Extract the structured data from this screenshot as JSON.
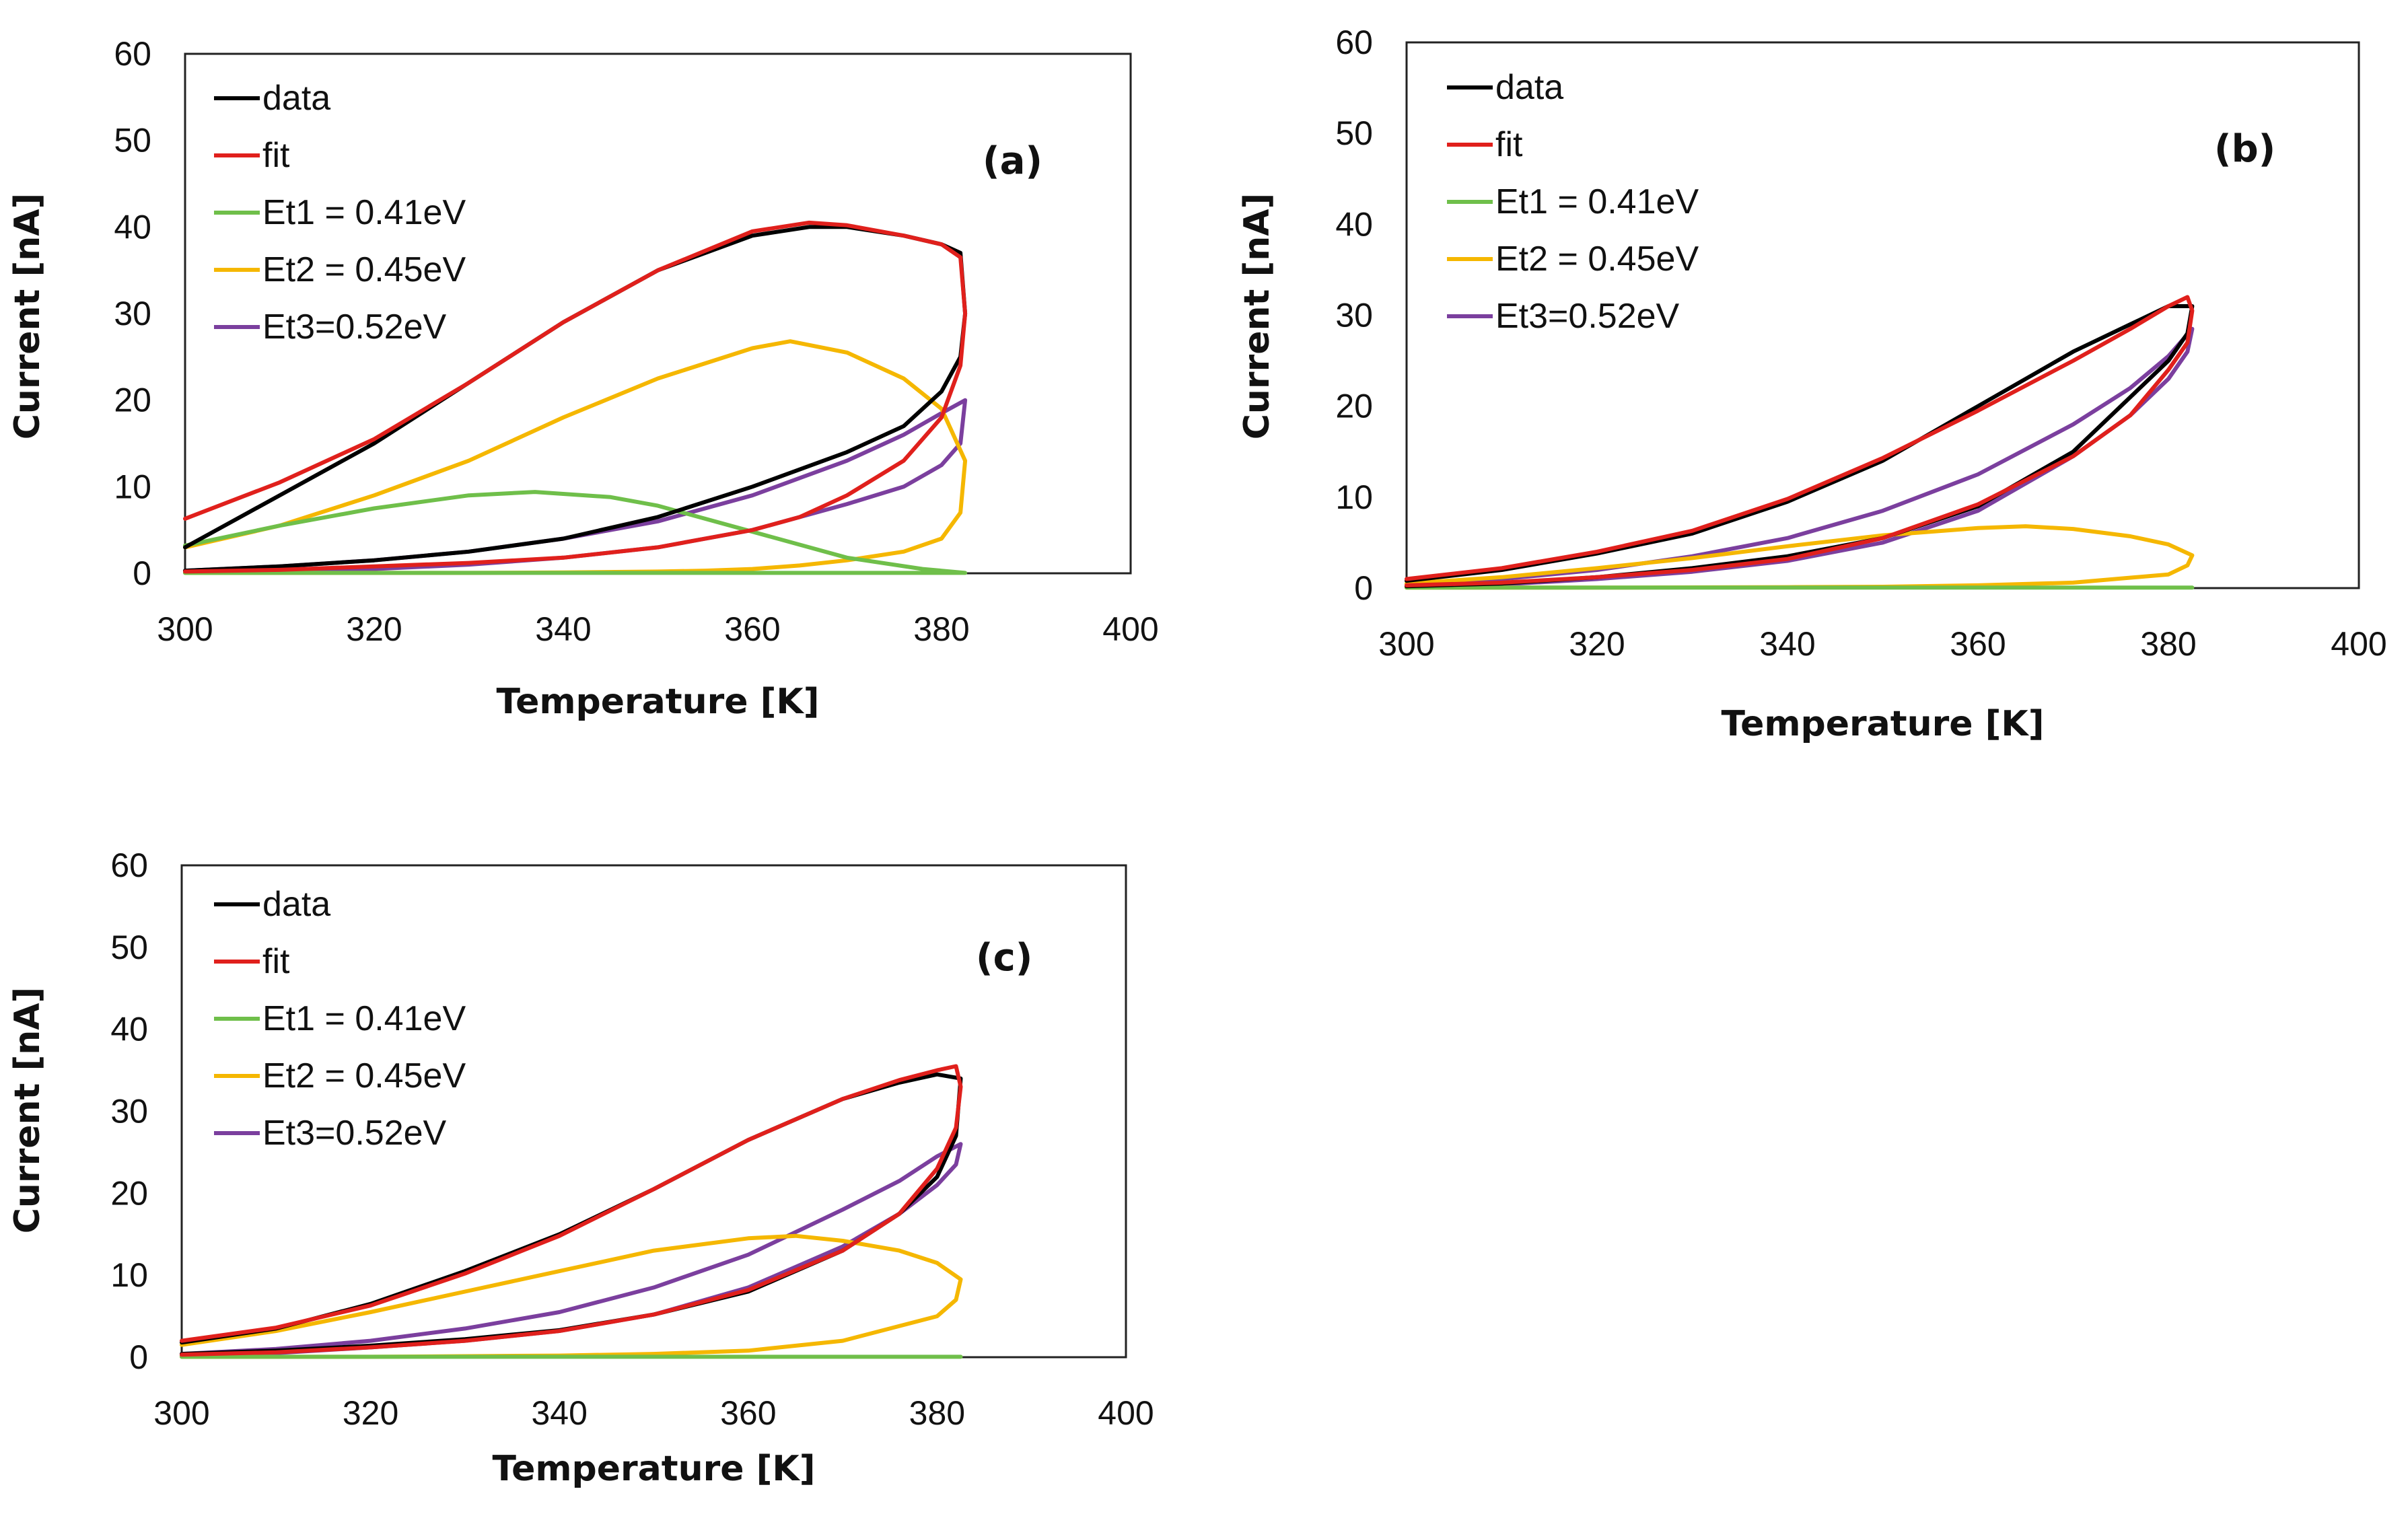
{
  "chart_data": [
    {
      "type": "line",
      "panel_label": "(a)",
      "xlabel": "Temperature [K]",
      "ylabel": "Current [nA]",
      "xlim": [
        300,
        400
      ],
      "ylim": [
        0,
        60
      ],
      "x_ticks": [
        300,
        320,
        340,
        360,
        380,
        400
      ],
      "y_ticks": [
        0,
        10,
        20,
        30,
        40,
        50,
        60
      ],
      "grid": false,
      "legend_position": "top-left",
      "series": [
        {
          "name": "data",
          "color": "#000000",
          "x": [
            300,
            310,
            320,
            330,
            340,
            350,
            360,
            366,
            370,
            376,
            380,
            382,
            382.5,
            382,
            380,
            376,
            370,
            360,
            350,
            340,
            330,
            320,
            310,
            300
          ],
          "y": [
            3,
            9,
            15,
            22,
            29,
            35,
            39,
            40,
            40,
            39,
            38,
            37,
            30,
            25,
            21,
            17,
            14,
            10,
            6.5,
            4,
            2.5,
            1.5,
            0.8,
            0.3
          ]
        },
        {
          "name": "fit",
          "color": "#e0201c",
          "x": [
            300,
            310,
            320,
            330,
            340,
            350,
            360,
            366,
            370,
            376,
            380,
            382,
            382.5,
            382,
            380,
            376,
            370,
            365,
            360,
            350,
            340,
            330,
            320,
            310,
            300
          ],
          "y": [
            6.3,
            10.5,
            15.5,
            22,
            29,
            35,
            39.5,
            40.5,
            40.2,
            39,
            38,
            36.5,
            30,
            24,
            18,
            13,
            9,
            6.5,
            5,
            3,
            1.8,
            1.2,
            0.8,
            0.4,
            0.2
          ]
        },
        {
          "name": "Et1 = 0.41eV",
          "color": "#6fbf4a",
          "x": [
            300,
            310,
            320,
            330,
            337,
            345,
            350,
            360,
            370,
            378,
            382,
            382.5,
            380,
            370,
            360,
            350,
            340,
            330,
            320,
            310,
            300
          ],
          "y": [
            3.2,
            5.5,
            7.5,
            9,
            9.4,
            8.8,
            7.8,
            4.8,
            1.8,
            0.5,
            0.1,
            0.05,
            0.05,
            0.05,
            0.05,
            0.05,
            0.05,
            0.05,
            0.05,
            0.05,
            0.05
          ]
        },
        {
          "name": "Et2 = 0.45eV",
          "color": "#f5b700",
          "x": [
            300,
            310,
            320,
            330,
            340,
            350,
            360,
            364,
            370,
            376,
            380,
            382.5,
            382,
            380,
            376,
            370,
            365,
            360,
            355,
            350,
            340,
            330,
            320,
            310,
            300
          ],
          "y": [
            3,
            5.5,
            9,
            13,
            18,
            22.5,
            26,
            26.8,
            25.5,
            22.5,
            19,
            13,
            7,
            4,
            2.5,
            1.5,
            0.9,
            0.5,
            0.3,
            0.2,
            0.1,
            0.05,
            0.05,
            0.05,
            0.05
          ]
        },
        {
          "name": "Et3=0.52eV",
          "color": "#7b3f9e",
          "x": [
            300,
            310,
            320,
            330,
            340,
            350,
            360,
            370,
            376,
            380,
            382.5,
            382,
            380,
            376,
            370,
            360,
            350,
            340,
            330,
            320,
            310,
            300
          ],
          "y": [
            0.3,
            0.8,
            1.5,
            2.5,
            4,
            6,
            9,
            13,
            16,
            18.5,
            20,
            15,
            12.5,
            10,
            8,
            5,
            3,
            1.8,
            1,
            0.5,
            0.2,
            0.1
          ]
        }
      ]
    },
    {
      "type": "line",
      "panel_label": "(b)",
      "xlabel": "Temperature [K]",
      "ylabel": "Current [nA]",
      "xlim": [
        300,
        400
      ],
      "ylim": [
        0,
        60
      ],
      "x_ticks": [
        300,
        320,
        340,
        360,
        380,
        400
      ],
      "y_ticks": [
        0,
        10,
        20,
        30,
        40,
        50,
        60
      ],
      "grid": false,
      "legend_position": "top-left",
      "series": [
        {
          "name": "data",
          "color": "#000000",
          "x": [
            300,
            310,
            320,
            330,
            340,
            350,
            360,
            370,
            376,
            380,
            382.5,
            382,
            380,
            376,
            370,
            360,
            350,
            340,
            330,
            320,
            310,
            300
          ],
          "y": [
            0.8,
            2,
            3.8,
            6,
            9.5,
            14,
            20,
            26,
            29,
            31,
            31,
            28,
            25,
            21,
            15,
            9,
            5.5,
            3.5,
            2.2,
            1.2,
            0.5,
            0.2
          ]
        },
        {
          "name": "fit",
          "color": "#e0201c",
          "x": [
            300,
            310,
            320,
            330,
            340,
            350,
            360,
            370,
            376,
            380,
            382,
            382.5,
            382,
            380,
            376,
            370,
            360,
            350,
            340,
            330,
            320,
            310,
            300
          ],
          "y": [
            1,
            2.2,
            4,
            6.3,
            9.8,
            14.3,
            19.5,
            25,
            28.5,
            31,
            32,
            30.5,
            27,
            24,
            19,
            14.5,
            9.2,
            5.5,
            3.2,
            2,
            1.2,
            0.6,
            0.3
          ]
        },
        {
          "name": "Et1 = 0.41eV",
          "color": "#6fbf4a",
          "x": [
            300,
            320,
            340,
            360,
            380,
            382.5
          ],
          "y": [
            0.05,
            0.05,
            0.05,
            0.05,
            0.05,
            0.05
          ]
        },
        {
          "name": "Et2 = 0.45eV",
          "color": "#f5b700",
          "x": [
            300,
            310,
            320,
            330,
            340,
            350,
            360,
            365,
            370,
            376,
            380,
            382.5,
            382,
            380,
            370,
            360,
            350,
            340,
            320,
            300
          ],
          "y": [
            0.5,
            1.2,
            2.2,
            3.3,
            4.6,
            5.8,
            6.6,
            6.8,
            6.5,
            5.7,
            4.8,
            3.6,
            2.5,
            1.5,
            0.6,
            0.3,
            0.15,
            0.1,
            0.05,
            0.05
          ]
        },
        {
          "name": "Et3=0.52eV",
          "color": "#7b3f9e",
          "x": [
            300,
            310,
            320,
            330,
            340,
            350,
            360,
            370,
            376,
            380,
            382.5,
            382,
            380,
            376,
            370,
            360,
            350,
            340,
            330,
            320,
            310,
            300
          ],
          "y": [
            0.3,
            1,
            2,
            3.5,
            5.5,
            8.5,
            12.5,
            18,
            22,
            25.5,
            28.5,
            26,
            23,
            19,
            14.5,
            8.5,
            5,
            3,
            1.8,
            1,
            0.4,
            0.1
          ]
        }
      ]
    },
    {
      "type": "line",
      "panel_label": "(c)",
      "xlabel": "Temperature [K]",
      "ylabel": "Current [nA]",
      "xlim": [
        300,
        400
      ],
      "ylim": [
        0,
        60
      ],
      "x_ticks": [
        300,
        320,
        340,
        360,
        380,
        400
      ],
      "y_ticks": [
        0,
        10,
        20,
        30,
        40,
        50,
        60
      ],
      "grid": false,
      "legend_position": "top-left",
      "series": [
        {
          "name": "data",
          "color": "#000000",
          "x": [
            300,
            310,
            320,
            330,
            340,
            350,
            360,
            370,
            376,
            380,
            382.5,
            382,
            380,
            376,
            370,
            360,
            350,
            340,
            330,
            320,
            310,
            300
          ],
          "y": [
            1.8,
            3.5,
            6.5,
            10.5,
            15,
            20.5,
            26.5,
            31.5,
            33.5,
            34.5,
            34,
            27,
            22,
            17.5,
            13,
            8,
            5.2,
            3.3,
            2.2,
            1.4,
            0.8,
            0.4
          ]
        },
        {
          "name": "fit",
          "color": "#e0201c",
          "x": [
            300,
            310,
            320,
            330,
            340,
            350,
            360,
            370,
            376,
            380,
            382,
            382.5,
            382,
            380,
            376,
            370,
            360,
            350,
            340,
            330,
            320,
            310,
            300
          ],
          "y": [
            2,
            3.6,
            6.3,
            10.2,
            14.8,
            20.5,
            26.5,
            31.5,
            33.8,
            35,
            35.5,
            33,
            28,
            23,
            17.5,
            13,
            8.2,
            5.2,
            3.2,
            2,
            1.2,
            0.6,
            0.3
          ]
        },
        {
          "name": "Et1 = 0.41eV",
          "color": "#6fbf4a",
          "x": [
            300,
            320,
            340,
            360,
            380,
            382.5
          ],
          "y": [
            0.05,
            0.05,
            0.05,
            0.05,
            0.05,
            0.05
          ]
        },
        {
          "name": "Et2 = 0.45eV",
          "color": "#f5b700",
          "x": [
            300,
            310,
            320,
            330,
            340,
            350,
            360,
            365,
            370,
            376,
            380,
            382.5,
            382,
            380,
            370,
            360,
            350,
            340,
            320,
            300
          ],
          "y": [
            1.5,
            3.2,
            5.5,
            8,
            10.5,
            13,
            14.5,
            14.8,
            14.2,
            13,
            11.5,
            9.5,
            7,
            5,
            2,
            0.8,
            0.4,
            0.2,
            0.05,
            0.05
          ]
        },
        {
          "name": "Et3=0.52eV",
          "color": "#7b3f9e",
          "x": [
            300,
            310,
            320,
            330,
            340,
            350,
            360,
            370,
            376,
            380,
            382.5,
            382,
            380,
            376,
            370,
            360,
            350,
            340,
            330,
            320,
            310,
            300
          ],
          "y": [
            0.4,
            1,
            2,
            3.5,
            5.5,
            8.5,
            12.5,
            18,
            21.5,
            24.5,
            26,
            23.5,
            21,
            17.5,
            13.5,
            8.5,
            5.2,
            3.2,
            2,
            1.2,
            0.5,
            0.2
          ]
        }
      ]
    }
  ]
}
